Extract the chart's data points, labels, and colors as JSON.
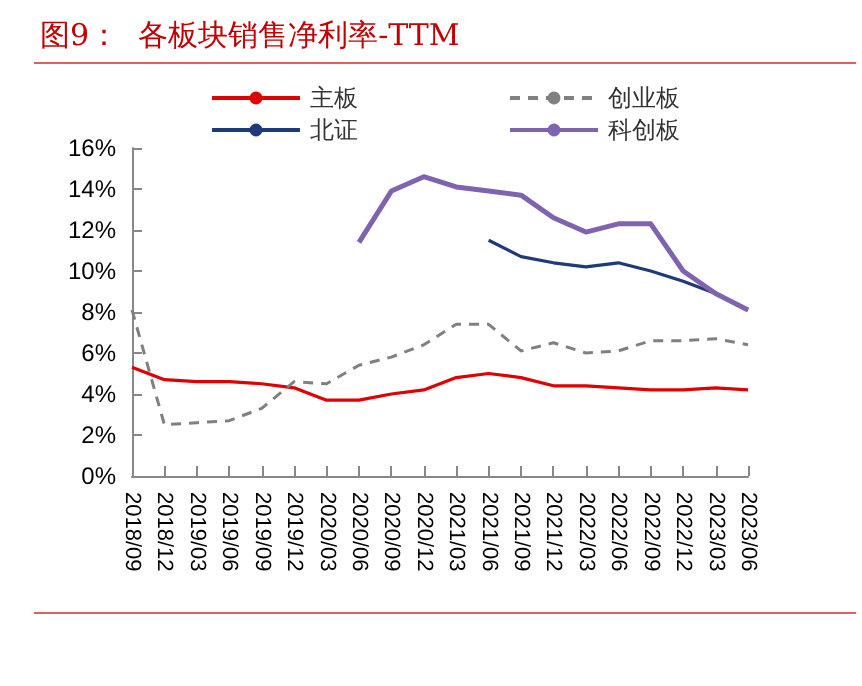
{
  "chart_data": {
    "type": "line",
    "title": "图9：  各板块销售净利率-TTM",
    "categories": [
      "2018/09",
      "2018/12",
      "2019/03",
      "2019/06",
      "2019/09",
      "2019/12",
      "2020/03",
      "2020/06",
      "2020/09",
      "2020/12",
      "2021/03",
      "2021/06",
      "2021/09",
      "2021/12",
      "2022/03",
      "2022/06",
      "2022/09",
      "2022/12",
      "2023/03",
      "2023/06"
    ],
    "series": [
      {
        "name": "主板",
        "color": "#e00000",
        "line_style": "solid",
        "values": [
          5.3,
          4.7,
          4.6,
          4.6,
          4.5,
          4.3,
          3.7,
          3.7,
          4.0,
          4.2,
          4.8,
          5.0,
          4.8,
          4.4,
          4.4,
          4.3,
          4.2,
          4.2,
          4.3,
          4.2
        ]
      },
      {
        "name": "创业板",
        "color": "#808080",
        "line_style": "dashed",
        "values": [
          8.1,
          2.5,
          2.6,
          2.7,
          3.3,
          4.6,
          4.5,
          5.4,
          5.8,
          6.4,
          7.4,
          7.4,
          6.1,
          6.5,
          6.0,
          6.1,
          6.6,
          6.6,
          6.7,
          6.4
        ]
      },
      {
        "name": "北证",
        "color": "#1f3a7a",
        "line_style": "solid",
        "values": [
          null,
          null,
          null,
          null,
          null,
          null,
          null,
          null,
          null,
          null,
          null,
          11.5,
          10.7,
          10.4,
          10.2,
          10.4,
          10.0,
          9.5,
          8.9,
          8.1
        ]
      },
      {
        "name": "科创板",
        "color": "#7f63b0",
        "line_style": "solid",
        "values": [
          null,
          null,
          null,
          null,
          null,
          null,
          null,
          11.4,
          13.9,
          14.6,
          14.1,
          13.9,
          13.7,
          12.6,
          11.9,
          12.3,
          12.3,
          10.0,
          8.9,
          8.1
        ]
      }
    ],
    "ylim": [
      0,
      16
    ],
    "yticks": [
      {
        "value": 0,
        "label": "0%"
      },
      {
        "value": 2,
        "label": "2%"
      },
      {
        "value": 4,
        "label": "4%"
      },
      {
        "value": 6,
        "label": "6%"
      },
      {
        "value": 8,
        "label": "8%"
      },
      {
        "value": 10,
        "label": "10%"
      },
      {
        "value": 12,
        "label": "12%"
      },
      {
        "value": 14,
        "label": "14%"
      },
      {
        "value": 16,
        "label": "16%"
      }
    ],
    "grid": false,
    "legend": "top",
    "marker": "none"
  }
}
